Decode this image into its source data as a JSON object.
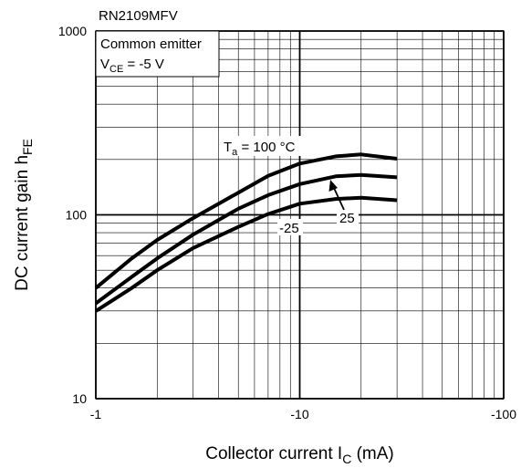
{
  "chart_data": {
    "type": "line",
    "title": "RN2109MFV",
    "condition": {
      "line1": "Common emitter",
      "vce_main": "V",
      "vce_sub": "CE",
      "vce_rest": " = -5 V"
    },
    "xlabel": {
      "main": "Collector current  I",
      "sub": "C",
      "unit": "  (mA)"
    },
    "ylabel": {
      "main": "DC current gain  h",
      "sub": "FE"
    },
    "x_scale": "log",
    "y_scale": "log",
    "xlim": [
      -1,
      -100
    ],
    "ylim": [
      10,
      1000
    ],
    "x_ticks": [
      {
        "value": 1,
        "label": "-1"
      },
      {
        "value": 10,
        "label": "-10"
      },
      {
        "value": 100,
        "label": "-100"
      }
    ],
    "y_ticks": [
      {
        "value": 10,
        "label": "10"
      },
      {
        "value": 100,
        "label": "100"
      },
      {
        "value": 1000,
        "label": "1000"
      }
    ],
    "grid": true,
    "series": [
      {
        "name": "Ta = 100 °C",
        "label_main": "T",
        "label_sub": "a",
        "label_rest": " = 100 °C",
        "x": [
          -1,
          -1.5,
          -2,
          -3,
          -5,
          -7,
          -10,
          -15,
          -20,
          -30
        ],
        "y": [
          40,
          58,
          73,
          96,
          132,
          163,
          190,
          208,
          213,
          202
        ]
      },
      {
        "name": "25",
        "label_main": "25",
        "x": [
          -1,
          -1.5,
          -2,
          -3,
          -5,
          -7,
          -10,
          -15,
          -20,
          -30
        ],
        "y": [
          33,
          46,
          58,
          78,
          108,
          128,
          147,
          162,
          165,
          160
        ]
      },
      {
        "name": "-25",
        "label_main": "-25",
        "x": [
          -1,
          -1.5,
          -2,
          -3,
          -5,
          -7,
          -10,
          -15,
          -20,
          -30
        ],
        "y": [
          30,
          40,
          50,
          66,
          86,
          101,
          115,
          122,
          124,
          120
        ]
      }
    ]
  }
}
